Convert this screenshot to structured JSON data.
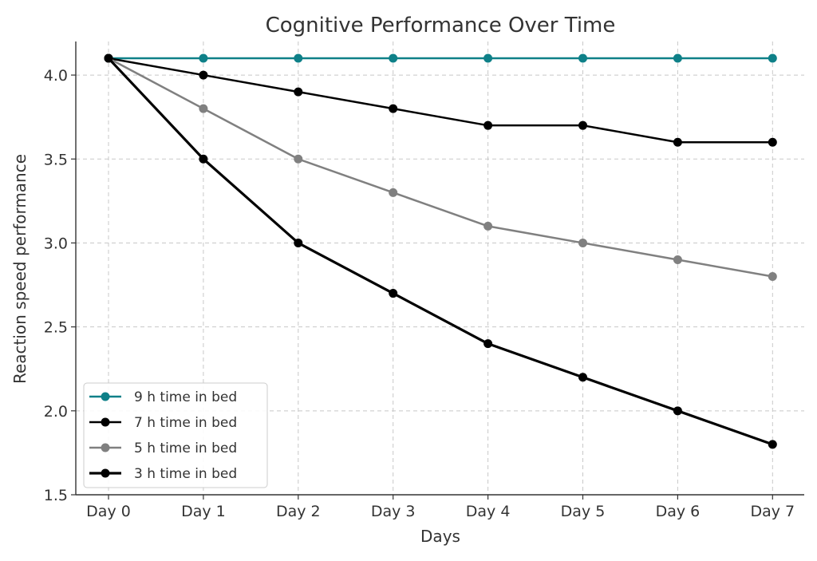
{
  "chart_data": {
    "type": "line",
    "title": "Cognitive Performance Over Time",
    "xlabel": "Days",
    "ylabel": "Reaction speed performance",
    "categories": [
      "Day 0",
      "Day 1",
      "Day 2",
      "Day 3",
      "Day 4",
      "Day 5",
      "Day 6",
      "Day 7"
    ],
    "ylim": [
      1.5,
      4.2
    ],
    "yticks": [
      "1.5",
      "2.0",
      "2.5",
      "3.0",
      "3.5",
      "4.0"
    ],
    "grid": true,
    "legend_position": "lower-left",
    "series": [
      {
        "name": "9 h time in bed",
        "color": "#0e8088",
        "values": [
          4.1,
          4.1,
          4.1,
          4.1,
          4.1,
          4.1,
          4.1,
          4.1
        ]
      },
      {
        "name": "7 h time in bed",
        "color": "#000000",
        "values": [
          4.1,
          4.0,
          3.9,
          3.8,
          3.7,
          3.7,
          3.6,
          3.6
        ]
      },
      {
        "name": "5 h time in bed",
        "color": "#808080",
        "values": [
          4.1,
          3.8,
          3.5,
          3.3,
          3.1,
          3.0,
          2.9,
          2.8
        ]
      },
      {
        "name": "3 h time in bed",
        "color": "#000000",
        "values": [
          4.1,
          3.5,
          3.0,
          2.7,
          2.4,
          2.2,
          2.0,
          1.8
        ]
      }
    ]
  }
}
